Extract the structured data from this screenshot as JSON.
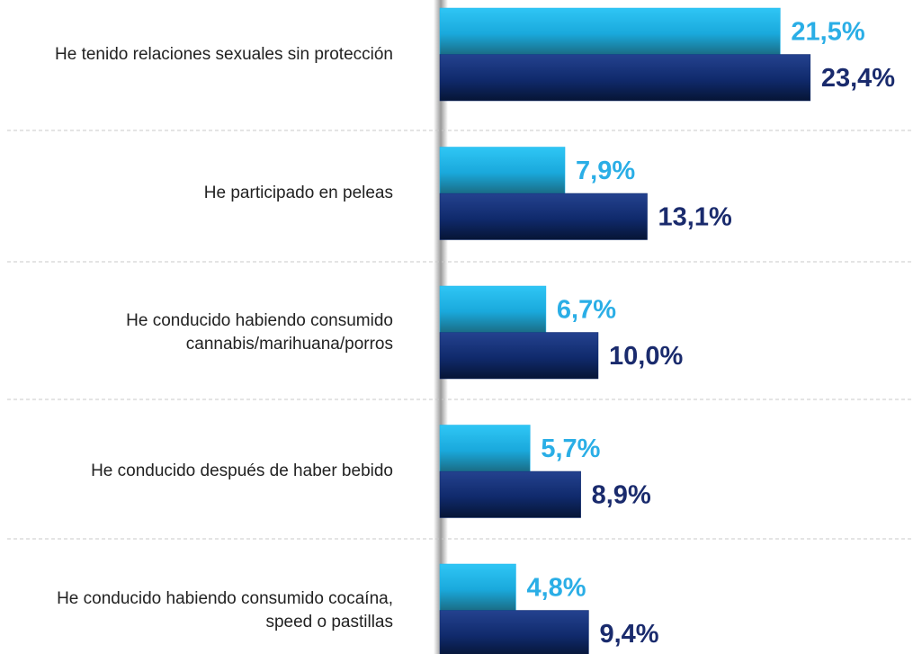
{
  "chart_data": {
    "type": "bar",
    "orientation": "horizontal",
    "categories": [
      "He tenido relaciones sexuales sin protección",
      "He participado en peleas",
      "He conducido habiendo consumido cannabis/marihuana/porros",
      "He conducido después de haber bebido",
      "He conducido habiendo consumido cocaína, speed o pastillas"
    ],
    "series": [
      {
        "color": "#1db4ec",
        "label_color": "#2aaee6",
        "values": [
          21.5,
          7.9,
          6.7,
          5.7,
          4.8
        ],
        "value_labels": [
          "21,5%",
          "7,9%",
          "6,7%",
          "5,7%",
          "4,8%"
        ]
      },
      {
        "color": "#0f2a6e",
        "label_color": "#1a2b6d",
        "values": [
          23.4,
          13.1,
          10.0,
          8.9,
          9.4
        ],
        "value_labels": [
          "23,4%",
          "13,1%",
          "10,0%",
          "8,9%",
          "9,4%"
        ]
      }
    ]
  }
}
